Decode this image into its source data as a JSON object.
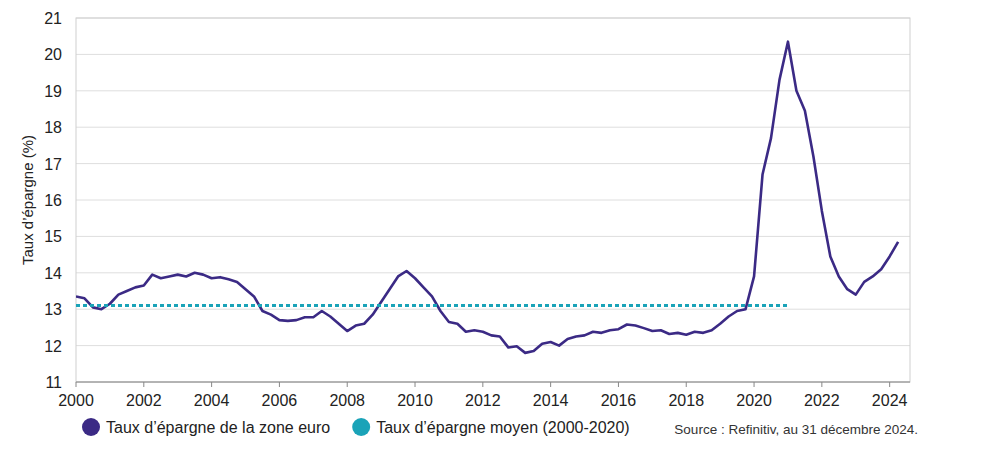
{
  "chart_data": {
    "type": "line",
    "y_label": "Taux d’épargne (%)",
    "source": "Source : Refinitiv, au 31 décembre 2024.",
    "x": [
      2000,
      2000.25,
      2000.5,
      2000.75,
      2001,
      2001.25,
      2001.5,
      2001.75,
      2002,
      2002.25,
      2002.5,
      2002.75,
      2003,
      2003.25,
      2003.5,
      2003.75,
      2004,
      2004.25,
      2004.5,
      2004.75,
      2005,
      2005.25,
      2005.5,
      2005.75,
      2006,
      2006.25,
      2006.5,
      2006.75,
      2007,
      2007.25,
      2007.5,
      2007.75,
      2008,
      2008.25,
      2008.5,
      2008.75,
      2009,
      2009.25,
      2009.5,
      2009.75,
      2010,
      2010.25,
      2010.5,
      2010.75,
      2011,
      2011.25,
      2011.5,
      2011.75,
      2012,
      2012.25,
      2012.5,
      2012.75,
      2013,
      2013.25,
      2013.5,
      2013.75,
      2014,
      2014.25,
      2014.5,
      2014.75,
      2015,
      2015.25,
      2015.5,
      2015.75,
      2016,
      2016.25,
      2016.5,
      2016.75,
      2017,
      2017.25,
      2017.5,
      2017.75,
      2018,
      2018.25,
      2018.5,
      2018.75,
      2019,
      2019.25,
      2019.5,
      2019.75,
      2020,
      2020.25,
      2020.5,
      2020.75,
      2021,
      2021.25,
      2021.5,
      2021.75,
      2022,
      2022.25,
      2022.5,
      2022.75,
      2023,
      2023.25,
      2023.5,
      2023.75,
      2024,
      2024.25
    ],
    "series": [
      {
        "name": "Taux d’épargne de la zone euro",
        "color": "#3b2a85",
        "line_style": "solid",
        "values": [
          13.35,
          13.3,
          13.05,
          13.0,
          13.15,
          13.4,
          13.5,
          13.6,
          13.65,
          13.95,
          13.85,
          13.9,
          13.95,
          13.9,
          14.0,
          13.95,
          13.85,
          13.88,
          13.82,
          13.75,
          13.55,
          13.35,
          12.95,
          12.85,
          12.7,
          12.68,
          12.7,
          12.78,
          12.78,
          12.95,
          12.8,
          12.6,
          12.4,
          12.55,
          12.6,
          12.85,
          13.2,
          13.55,
          13.9,
          14.05,
          13.85,
          13.6,
          13.35,
          12.95,
          12.65,
          12.6,
          12.38,
          12.42,
          12.38,
          12.28,
          12.25,
          11.95,
          11.98,
          11.8,
          11.85,
          12.05,
          12.1,
          12.0,
          12.18,
          12.25,
          12.28,
          12.38,
          12.35,
          12.42,
          12.45,
          12.58,
          12.55,
          12.48,
          12.4,
          12.42,
          12.32,
          12.35,
          12.3,
          12.38,
          12.35,
          12.42,
          12.6,
          12.8,
          12.95,
          13.0,
          13.9,
          16.7,
          17.7,
          19.3,
          20.35,
          19.0,
          18.45,
          17.2,
          15.7,
          14.45,
          13.9,
          13.55,
          13.4,
          13.75,
          13.9,
          14.1,
          14.45,
          14.85
        ]
      },
      {
        "name": "Taux d’épargne moyen (2000-2020)",
        "color": "#1aa3b8",
        "line_style": "dashed",
        "x": [
          2000,
          2021
        ],
        "values": [
          13.1,
          13.1
        ]
      }
    ],
    "xlim": [
      2000,
      2024.6
    ],
    "xticks": [
      2000,
      2002,
      2004,
      2006,
      2008,
      2010,
      2012,
      2014,
      2016,
      2018,
      2020,
      2022,
      2024
    ],
    "ylim": [
      11,
      21
    ],
    "yticks": [
      11,
      12,
      13,
      14,
      15,
      16,
      17,
      18,
      19,
      20,
      21
    ],
    "grid": true,
    "legend": "bottom"
  }
}
